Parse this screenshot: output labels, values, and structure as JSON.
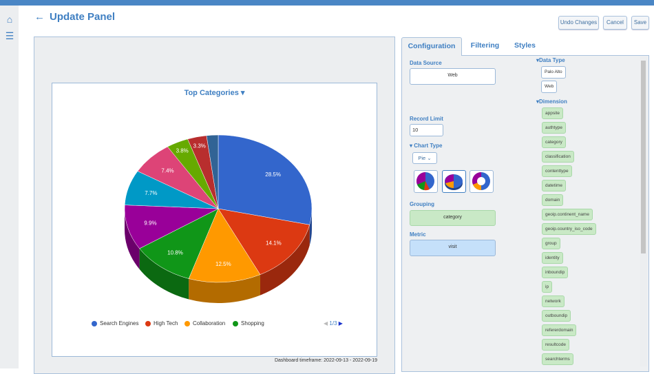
{
  "header": {
    "title": "Update Panel",
    "buttons": {
      "undo": "Undo Changes",
      "cancel": "Cancel",
      "save": "Save"
    }
  },
  "sidebar": {
    "icons": [
      "home-icon",
      "list-icon"
    ]
  },
  "chart_data": {
    "type": "pie",
    "title": "Top Categories",
    "slices": [
      {
        "label": "Search Engines",
        "value": 28.5,
        "color": "#3366cc"
      },
      {
        "label": "High Tech",
        "value": 14.1,
        "color": "#dc3912"
      },
      {
        "label": "Collaboration",
        "value": 12.5,
        "color": "#ff9900"
      },
      {
        "label": "Shopping",
        "value": 10.8,
        "color": "#109618"
      },
      {
        "label": "",
        "value": 9.9,
        "color": "#990099"
      },
      {
        "label": "",
        "value": 7.7,
        "color": "#0099c6"
      },
      {
        "label": "",
        "value": 7.4,
        "color": "#dd4477"
      },
      {
        "label": "",
        "value": 3.8,
        "color": "#66aa00"
      },
      {
        "label": "",
        "value": 3.3,
        "color": "#b82e2e"
      },
      {
        "label": "",
        "value": 2.0,
        "color": "#316395"
      }
    ],
    "data_labels": [
      "28.5%",
      "14.1%",
      "12.5%",
      "10.8%",
      "9.9%",
      "7.7%",
      "7.4%",
      "3.8%",
      "3.3%",
      ""
    ],
    "legend": [
      "Search Engines",
      "High Tech",
      "Collaboration",
      "Shopping"
    ],
    "legend_placement": "bottom",
    "pager": "1/3"
  },
  "footer": "Dashboard timeframe: 2022-09-13 - 2022-09-19",
  "tabs": [
    "Configuration",
    "Filtering",
    "Styles"
  ],
  "config": {
    "data_source_label": "Data Source",
    "data_source": "Web",
    "record_limit_label": "Record Limit",
    "record_limit": "10",
    "chart_type_label": "Chart Type",
    "chart_type": "Pie",
    "grouping_label": "Grouping",
    "grouping": "category",
    "metric_label": "Metric",
    "metric": "visit",
    "data_type_label": "Data Type",
    "data_types": [
      "Palo Alto",
      "Web"
    ],
    "dimension_label": "Dimension",
    "dimensions": [
      "appsite",
      "authtype",
      "category",
      "classification",
      "contenttype",
      "datetime",
      "domain",
      "geoip.continent_name",
      "geoip.country_iso_code",
      "group",
      "identity",
      "inboundip",
      "ip",
      "network",
      "outboundip",
      "refererdomain",
      "resultcode",
      "searchterms"
    ]
  }
}
